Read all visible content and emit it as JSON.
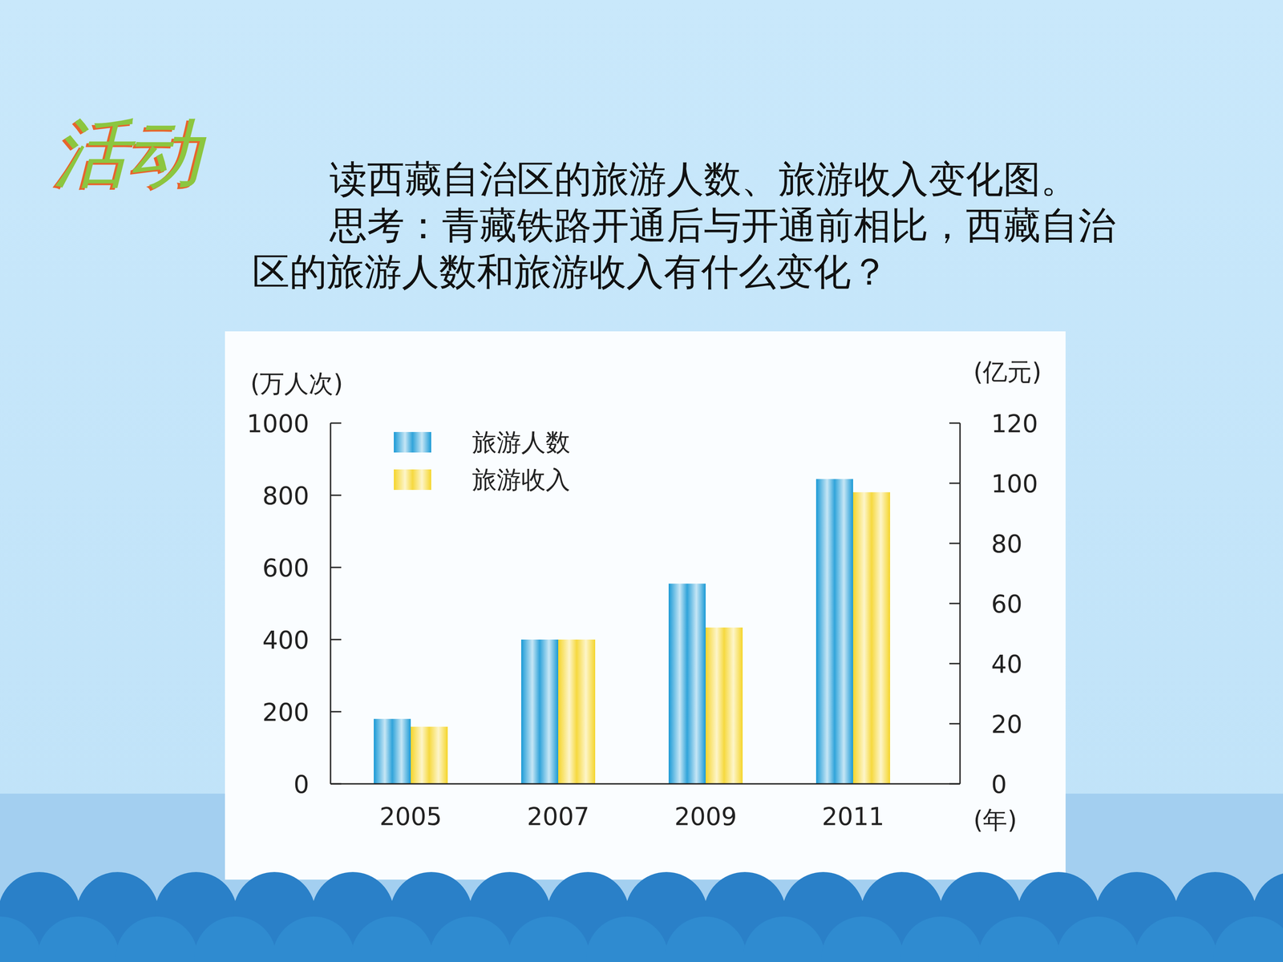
{
  "slide": {
    "badge": "活动",
    "instructions": [
      "读西藏自治区的旅游人数、旅游收入变化图。",
      "思考：青藏铁路开通后与开通前相比，西藏自治区的旅游人数和旅游收入有什么变化？"
    ]
  },
  "chart_data": {
    "type": "bar",
    "categories": [
      "2005",
      "2007",
      "2009",
      "2011"
    ],
    "series": [
      {
        "name": "旅游人数",
        "color": "#1a9ad6",
        "values": [
          180,
          400,
          555,
          845
        ]
      },
      {
        "name": "旅游收入",
        "color": "#f5d52a",
        "values": [
          19,
          48,
          52,
          97
        ],
        "axis": "y2"
      }
    ],
    "ylim": [
      0,
      1000
    ],
    "yticks": [
      0,
      200,
      400,
      600,
      800,
      1000
    ],
    "y2lim": [
      0,
      120
    ],
    "y2ticks": [
      0,
      20,
      40,
      60,
      80,
      100,
      120
    ],
    "y_label": "(万人次)",
    "y2_label": "(亿元)",
    "x_label": "(年)",
    "legend": "top-left",
    "grid": false
  }
}
